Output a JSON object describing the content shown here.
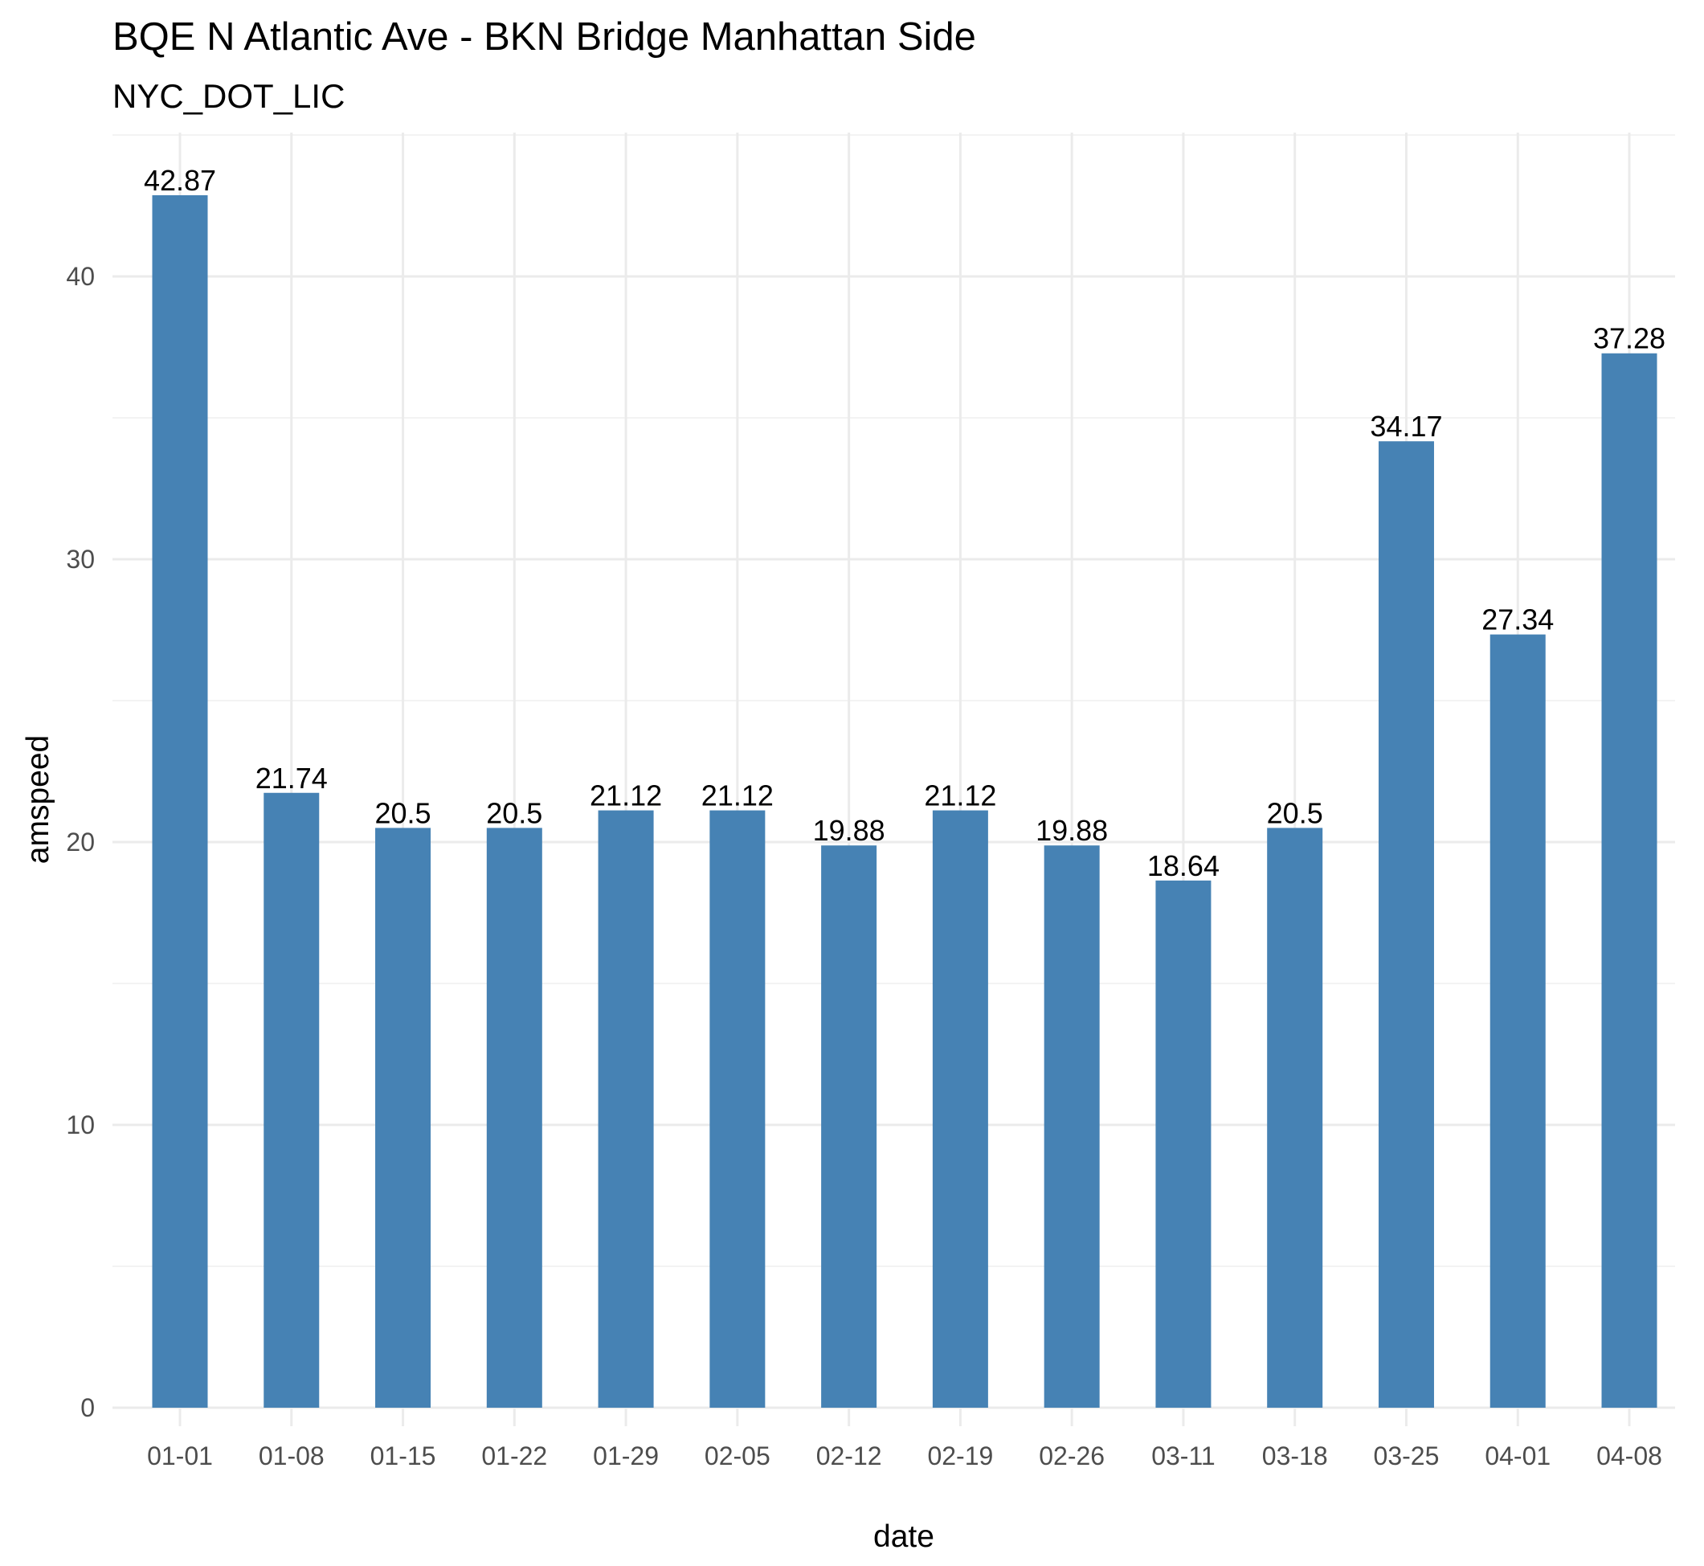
{
  "colors": {
    "bar": "#4682B4",
    "grid_major": "#ebebeb",
    "grid_minor": "#f3f3f3",
    "background": "#ffffff"
  },
  "chart_data": {
    "type": "bar",
    "title": "BQE N Atlantic Ave - BKN Bridge Manhattan Side",
    "subtitle": "NYC_DOT_LIC",
    "xlabel": "date",
    "ylabel": "amspeed",
    "categories": [
      "01-01",
      "01-08",
      "01-15",
      "01-22",
      "01-29",
      "02-05",
      "02-12",
      "02-19",
      "02-26",
      "03-11",
      "03-18",
      "03-25",
      "04-01",
      "04-08"
    ],
    "values": [
      42.87,
      21.74,
      20.5,
      20.5,
      21.12,
      21.12,
      19.88,
      21.12,
      19.88,
      18.64,
      20.5,
      34.17,
      27.34,
      37.28
    ],
    "data_labels": [
      "42.87",
      "21.74",
      "20.5",
      "20.5",
      "21.12",
      "21.12",
      "19.88",
      "21.12",
      "19.88",
      "18.64",
      "20.5",
      "34.17",
      "27.34",
      "37.28"
    ],
    "y_ticks": [
      0,
      10,
      20,
      30,
      40
    ],
    "ylim": [
      0,
      45
    ],
    "grid": true,
    "legend": "none"
  }
}
